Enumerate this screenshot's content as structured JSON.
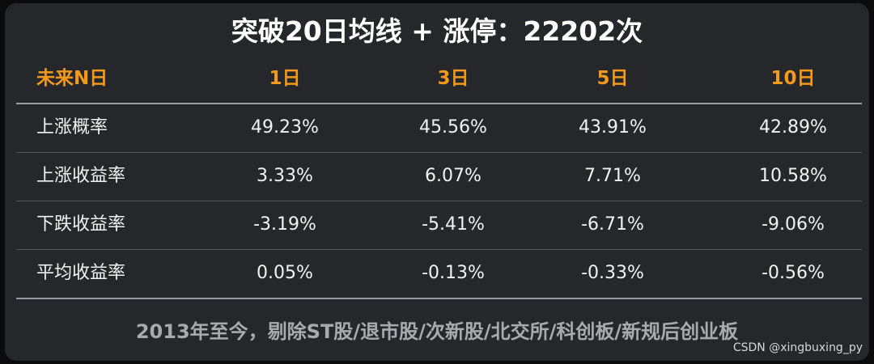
{
  "header": {
    "title": "突破20日均线 + 涨停：22202次"
  },
  "table": {
    "columns": [
      "未来N日",
      "1日",
      "3日",
      "5日",
      "10日"
    ],
    "rows": [
      [
        "上涨概率",
        "49.23%",
        "45.56%",
        "43.91%",
        "42.89%"
      ],
      [
        "上涨收益率",
        "3.33%",
        "6.07%",
        "7.71%",
        "10.58%"
      ],
      [
        "下跌收益率",
        "-3.19%",
        "-5.41%",
        "-6.71%",
        "-9.06%"
      ],
      [
        "平均收益率",
        "0.05%",
        "-0.13%",
        "-0.33%",
        "-0.56%"
      ]
    ]
  },
  "footer": {
    "note": "2013年至今，剔除ST股/退市股/次新股/北交所/科创板/新规后创业板",
    "watermark": "CSDN @xingbuxing_py"
  }
}
